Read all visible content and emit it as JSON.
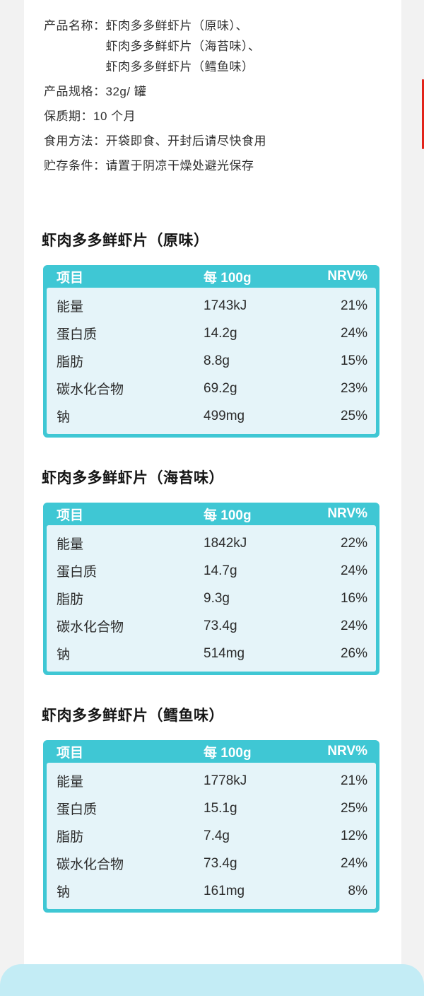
{
  "colors": {
    "page_background": "#f2f2f2",
    "sheet_background": "#ffffff",
    "table_accent": "#3fc7d4",
    "table_row_background": "#e5f4f9",
    "table_header_text": "#ffffff",
    "body_text": "#303030",
    "footer_background": "#c3ecf5",
    "scrollbar_red": "#e2231a"
  },
  "info": {
    "rows": [
      {
        "label": "产品名称：",
        "lines": [
          "虾肉多多鲜虾片（原味）、",
          "虾肉多多鲜虾片（海苔味）、",
          "虾肉多多鲜虾片（鳕鱼味）"
        ]
      },
      {
        "label": "产品规格：",
        "value": "32g/ 罐"
      },
      {
        "label": "保质期：",
        "value": "10 个月"
      },
      {
        "label": "食用方法：",
        "value": "开袋即食、开封后请尽快食用"
      },
      {
        "label": "贮存条件：",
        "value": "请置于阴凉干燥处避光保存"
      }
    ]
  },
  "tables": [
    {
      "title": "虾肉多多鲜虾片（原味）",
      "headers": [
        "项目",
        "每 100g",
        "NRV%"
      ],
      "rows": [
        [
          "能量",
          "1743kJ",
          "21%"
        ],
        [
          "蛋白质",
          "14.2g",
          "24%"
        ],
        [
          "脂肪",
          "8.8g",
          "15%"
        ],
        [
          "碳水化合物",
          "69.2g",
          "23%"
        ],
        [
          "钠",
          "499mg",
          "25%"
        ]
      ]
    },
    {
      "title": "虾肉多多鲜虾片（海苔味）",
      "headers": [
        "项目",
        "每 100g",
        "NRV%"
      ],
      "rows": [
        [
          "能量",
          "1842kJ",
          "22%"
        ],
        [
          "蛋白质",
          "14.7g",
          "24%"
        ],
        [
          "脂肪",
          "9.3g",
          "16%"
        ],
        [
          "碳水化合物",
          "73.4g",
          "24%"
        ],
        [
          "钠",
          "514mg",
          "26%"
        ]
      ]
    },
    {
      "title": "虾肉多多鲜虾片（鳕鱼味）",
      "headers": [
        "项目",
        "每 100g",
        "NRV%"
      ],
      "rows": [
        [
          "能量",
          "1778kJ",
          "21%"
        ],
        [
          "蛋白质",
          "15.1g",
          "25%"
        ],
        [
          "脂肪",
          "7.4g",
          "12%"
        ],
        [
          "碳水化合物",
          "73.4g",
          "24%"
        ],
        [
          "钠",
          "161mg",
          "8%"
        ]
      ]
    }
  ]
}
